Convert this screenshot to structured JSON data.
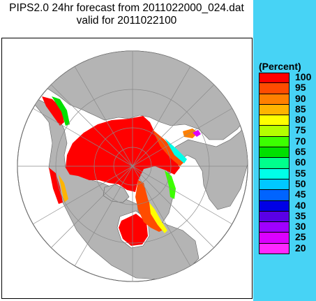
{
  "title_line1": "PIPS2.0 24hr forecast from 2011022000_024.dat",
  "title_line2": "valid for 2011022100",
  "legend": {
    "title": "(Percent)",
    "entries": [
      {
        "label": "100",
        "color": "#ff0000"
      },
      {
        "label": "95",
        "color": "#ff4c00"
      },
      {
        "label": "90",
        "color": "#ff8000"
      },
      {
        "label": "85",
        "color": "#ffb400"
      },
      {
        "label": "80",
        "color": "#ffff00"
      },
      {
        "label": "75",
        "color": "#b4ff00"
      },
      {
        "label": "70",
        "color": "#3cff00"
      },
      {
        "label": "65",
        "color": "#00e000"
      },
      {
        "label": "60",
        "color": "#00ff8c"
      },
      {
        "label": "55",
        "color": "#00ffe8"
      },
      {
        "label": "50",
        "color": "#00c8ff"
      },
      {
        "label": "45",
        "color": "#0064ff"
      },
      {
        "label": "40",
        "color": "#0000e6"
      },
      {
        "label": "35",
        "color": "#5a00e6"
      },
      {
        "label": "30",
        "color": "#a000ff"
      },
      {
        "label": "25",
        "color": "#dc00ff"
      },
      {
        "label": "20",
        "color": "#ff28ff"
      }
    ]
  },
  "map": {
    "projection": "polar stereographic, north pole centered",
    "ocean_color": "#ffffff",
    "land_color": "#b4b4b4",
    "ice_color_max": "#ff0000"
  }
}
